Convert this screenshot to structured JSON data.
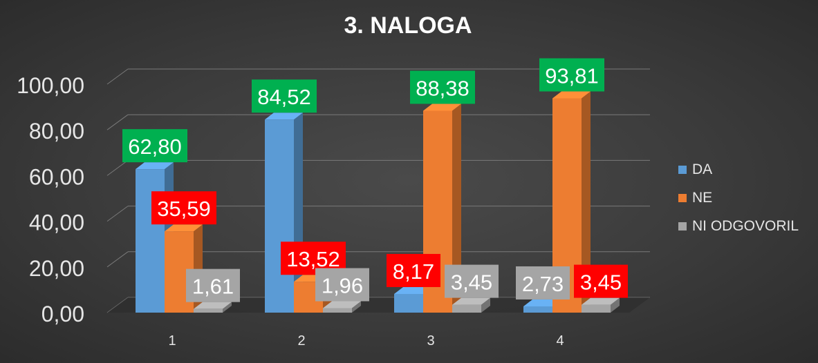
{
  "chart_data": {
    "type": "bar",
    "title": "3. NALOGA",
    "categories": [
      "1",
      "2",
      "3",
      "4"
    ],
    "series": [
      {
        "name": "DA",
        "values": [
          62.8,
          84.52,
          8.17,
          2.73
        ],
        "labels": [
          "62,80",
          "84,52",
          "8,17",
          "2,73"
        ],
        "color": "#5b9bd5"
      },
      {
        "name": "NE",
        "values": [
          35.59,
          13.52,
          88.38,
          93.81
        ],
        "labels": [
          "35,59",
          "13,52",
          "88,38",
          "93,81"
        ],
        "color": "#ed7d31"
      },
      {
        "name": "NI ODGOVORIL",
        "values": [
          1.61,
          1.96,
          3.45,
          3.45
        ],
        "labels": [
          "1,61",
          "1,96",
          "3,45",
          "3,45"
        ],
        "color": "#a5a5a5"
      }
    ],
    "ylim": [
      0,
      100
    ],
    "yticks": [
      "0,00",
      "20,00",
      "40,00",
      "60,00",
      "80,00",
      "100,00"
    ],
    "grid": true,
    "legend_position": "right",
    "label_colors": {
      "max": "#00b050",
      "mid": "#ff0000",
      "min": "#a5a5a5"
    }
  }
}
